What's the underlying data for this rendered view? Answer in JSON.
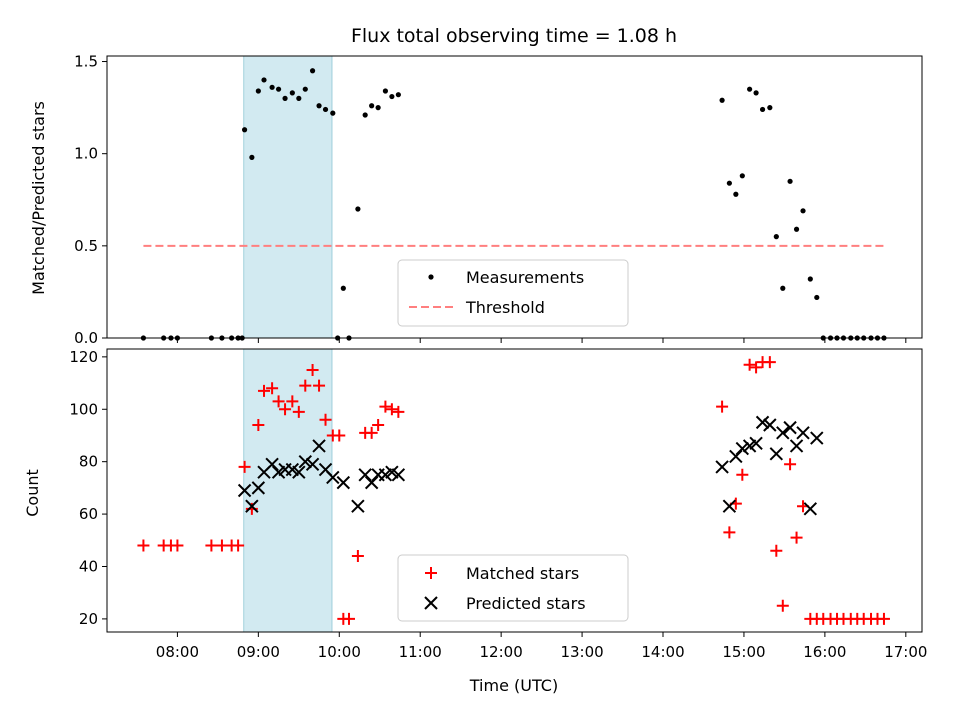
{
  "chart_data": {
    "type": "scatter",
    "title": "Flux total observing time = 1.08 h",
    "xlabel": "Time (UTC)",
    "xlim": [
      7.13,
      17.2
    ],
    "x_ticks": [
      8,
      9,
      10,
      11,
      12,
      13,
      14,
      15,
      16,
      17
    ],
    "x_tick_labels": [
      "08:00",
      "09:00",
      "10:00",
      "11:00",
      "12:00",
      "13:00",
      "14:00",
      "15:00",
      "16:00",
      "17:00"
    ],
    "highlight_span": {
      "x_start": 8.82,
      "x_end": 9.91,
      "color": "#add8e6"
    },
    "panels": [
      {
        "id": "ratio",
        "ylabel": "Matched/Predicted stars",
        "ylim": [
          0,
          1.53
        ],
        "y_ticks": [
          0.0,
          0.5,
          1.0,
          1.5
        ],
        "y_tick_labels": [
          "0.0",
          "0.5",
          "1.0",
          "1.5"
        ],
        "legend": [
          "Measurements",
          "Threshold"
        ],
        "series": [
          {
            "name": "Measurements",
            "marker": "dot",
            "color": "#000000",
            "points": [
              [
                7.58,
                0.0
              ],
              [
                7.83,
                0.0
              ],
              [
                7.92,
                0.0
              ],
              [
                8.0,
                0.0
              ],
              [
                8.42,
                0.0
              ],
              [
                8.55,
                0.0
              ],
              [
                8.67,
                0.0
              ],
              [
                8.75,
                0.0
              ],
              [
                8.8,
                0.0
              ],
              [
                8.83,
                1.13
              ],
              [
                8.92,
                0.98
              ],
              [
                9.0,
                1.34
              ],
              [
                9.07,
                1.4
              ],
              [
                9.17,
                1.36
              ],
              [
                9.25,
                1.35
              ],
              [
                9.33,
                1.3
              ],
              [
                9.42,
                1.33
              ],
              [
                9.5,
                1.3
              ],
              [
                9.58,
                1.35
              ],
              [
                9.67,
                1.45
              ],
              [
                9.75,
                1.26
              ],
              [
                9.83,
                1.24
              ],
              [
                9.92,
                1.22
              ],
              [
                9.98,
                0.0
              ],
              [
                10.05,
                0.27
              ],
              [
                10.12,
                0.0
              ],
              [
                10.23,
                0.7
              ],
              [
                10.32,
                1.21
              ],
              [
                10.4,
                1.26
              ],
              [
                10.48,
                1.25
              ],
              [
                10.57,
                1.34
              ],
              [
                10.65,
                1.31
              ],
              [
                10.73,
                1.32
              ],
              [
                14.73,
                1.29
              ],
              [
                14.82,
                0.84
              ],
              [
                14.9,
                0.78
              ],
              [
                14.98,
                0.88
              ],
              [
                15.07,
                1.35
              ],
              [
                15.15,
                1.33
              ],
              [
                15.23,
                1.24
              ],
              [
                15.32,
                1.25
              ],
              [
                15.4,
                0.55
              ],
              [
                15.48,
                0.27
              ],
              [
                15.57,
                0.85
              ],
              [
                15.65,
                0.59
              ],
              [
                15.73,
                0.69
              ],
              [
                15.82,
                0.32
              ],
              [
                15.9,
                0.22
              ],
              [
                15.98,
                0.0
              ],
              [
                16.07,
                0.0
              ],
              [
                16.15,
                0.0
              ],
              [
                16.23,
                0.0
              ],
              [
                16.32,
                0.0
              ],
              [
                16.4,
                0.0
              ],
              [
                16.48,
                0.0
              ],
              [
                16.57,
                0.0
              ],
              [
                16.65,
                0.0
              ],
              [
                16.73,
                0.0
              ]
            ]
          },
          {
            "name": "Threshold",
            "style": "dashed",
            "color": "#ff7f7f",
            "points": [
              [
                7.58,
                0.5
              ],
              [
                16.73,
                0.5
              ]
            ]
          }
        ]
      },
      {
        "id": "count",
        "ylabel": "Count",
        "ylim": [
          15,
          123
        ],
        "y_ticks": [
          20,
          40,
          60,
          80,
          100,
          120
        ],
        "y_tick_labels": [
          "20",
          "40",
          "60",
          "80",
          "100",
          "120"
        ],
        "legend": [
          "Matched stars",
          "Predicted stars"
        ],
        "series": [
          {
            "name": "Matched stars",
            "marker": "plus",
            "color": "#ff0000",
            "points": [
              [
                7.58,
                48
              ],
              [
                7.83,
                48
              ],
              [
                7.92,
                48
              ],
              [
                8.0,
                48
              ],
              [
                8.42,
                48
              ],
              [
                8.55,
                48
              ],
              [
                8.67,
                48
              ],
              [
                8.75,
                48
              ],
              [
                8.83,
                78
              ],
              [
                8.92,
                62
              ],
              [
                9.0,
                94
              ],
              [
                9.07,
                107
              ],
              [
                9.17,
                108
              ],
              [
                9.25,
                103
              ],
              [
                9.33,
                100
              ],
              [
                9.42,
                103
              ],
              [
                9.5,
                99
              ],
              [
                9.58,
                109
              ],
              [
                9.67,
                115
              ],
              [
                9.75,
                109
              ],
              [
                9.83,
                96
              ],
              [
                9.92,
                90
              ],
              [
                10.0,
                90
              ],
              [
                10.05,
                20
              ],
              [
                10.12,
                20
              ],
              [
                10.23,
                44
              ],
              [
                10.32,
                91
              ],
              [
                10.4,
                91
              ],
              [
                10.48,
                94
              ],
              [
                10.57,
                101
              ],
              [
                10.65,
                100
              ],
              [
                10.73,
                99
              ],
              [
                14.73,
                101
              ],
              [
                14.82,
                53
              ],
              [
                14.9,
                64
              ],
              [
                14.98,
                75
              ],
              [
                15.07,
                117
              ],
              [
                15.15,
                116
              ],
              [
                15.23,
                118
              ],
              [
                15.32,
                118
              ],
              [
                15.4,
                46
              ],
              [
                15.48,
                25
              ],
              [
                15.57,
                79
              ],
              [
                15.65,
                51
              ],
              [
                15.73,
                63
              ],
              [
                15.82,
                20
              ],
              [
                15.9,
                20
              ],
              [
                15.98,
                20
              ],
              [
                16.07,
                20
              ],
              [
                16.15,
                20
              ],
              [
                16.23,
                20
              ],
              [
                16.32,
                20
              ],
              [
                16.4,
                20
              ],
              [
                16.48,
                20
              ],
              [
                16.57,
                20
              ],
              [
                16.65,
                20
              ],
              [
                16.73,
                20
              ]
            ]
          },
          {
            "name": "Predicted stars",
            "marker": "x",
            "color": "#000000",
            "points": [
              [
                8.83,
                69
              ],
              [
                8.92,
                63
              ],
              [
                9.0,
                70
              ],
              [
                9.07,
                76
              ],
              [
                9.17,
                79
              ],
              [
                9.25,
                76
              ],
              [
                9.33,
                77
              ],
              [
                9.42,
                77
              ],
              [
                9.5,
                76
              ],
              [
                9.58,
                80
              ],
              [
                9.67,
                79
              ],
              [
                9.75,
                86
              ],
              [
                9.83,
                77
              ],
              [
                9.92,
                74
              ],
              [
                10.05,
                72
              ],
              [
                10.23,
                63
              ],
              [
                10.32,
                75
              ],
              [
                10.4,
                72
              ],
              [
                10.48,
                75
              ],
              [
                10.57,
                75
              ],
              [
                10.65,
                76
              ],
              [
                10.73,
                75
              ],
              [
                14.73,
                78
              ],
              [
                14.82,
                63
              ],
              [
                14.9,
                82
              ],
              [
                14.98,
                85
              ],
              [
                15.07,
                86
              ],
              [
                15.15,
                87
              ],
              [
                15.23,
                95
              ],
              [
                15.32,
                94
              ],
              [
                15.4,
                83
              ],
              [
                15.48,
                91
              ],
              [
                15.57,
                93
              ],
              [
                15.65,
                86
              ],
              [
                15.73,
                91
              ],
              [
                15.82,
                62
              ],
              [
                15.9,
                89
              ]
            ]
          }
        ]
      }
    ]
  }
}
